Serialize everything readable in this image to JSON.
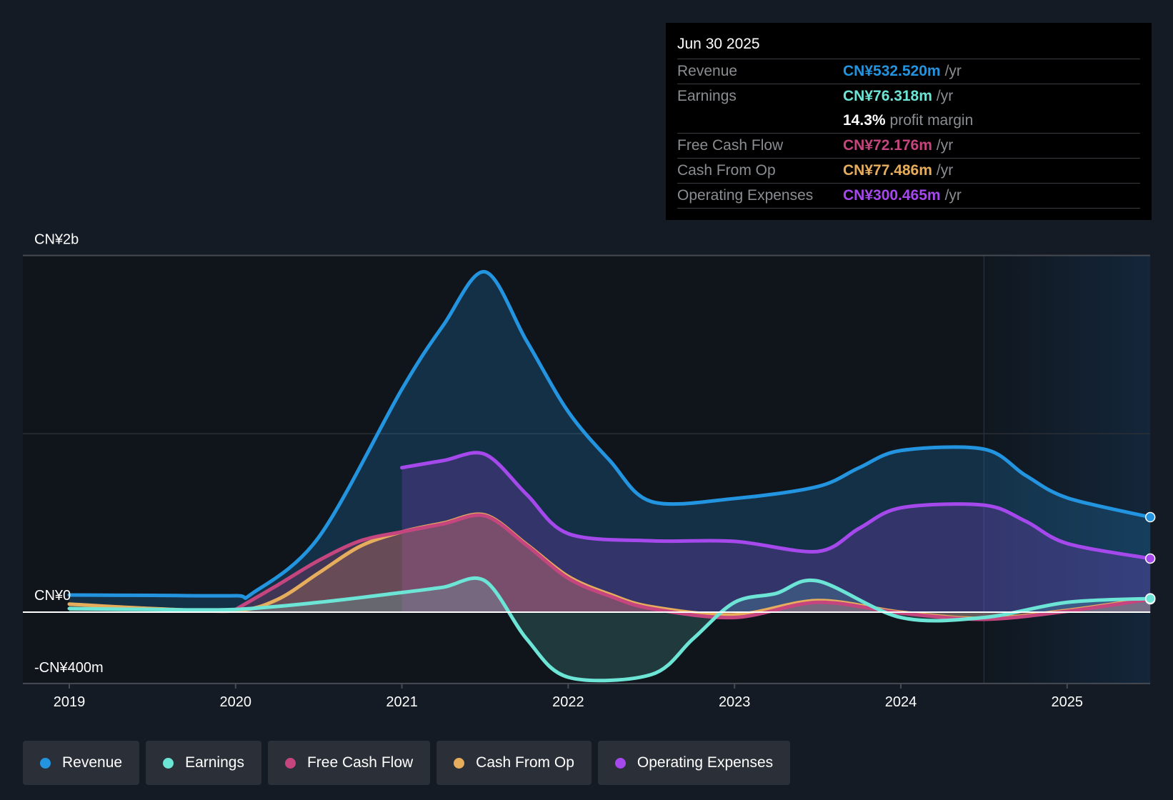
{
  "tooltip": {
    "date": "Jun 30 2025",
    "rows": [
      {
        "label": "Revenue",
        "value": "CN¥532.520m",
        "unit": "/yr",
        "color": "#2394df"
      },
      {
        "label": "Earnings",
        "value": "CN¥76.318m",
        "unit": "/yr",
        "color": "#6ce5d6"
      },
      {
        "label": "",
        "value": "14.3%",
        "unit": "profit margin",
        "color": "#ffffff"
      },
      {
        "label": "Free Cash Flow",
        "value": "CN¥72.176m",
        "unit": "/yr",
        "color": "#c5457f"
      },
      {
        "label": "Cash From Op",
        "value": "CN¥77.486m",
        "unit": "/yr",
        "color": "#e6ad5c"
      },
      {
        "label": "Operating Expenses",
        "value": "CN¥300.465m",
        "unit": "/yr",
        "color": "#a548ec"
      }
    ]
  },
  "legend": [
    {
      "label": "Revenue",
      "color": "#2394df"
    },
    {
      "label": "Earnings",
      "color": "#6ce5d6"
    },
    {
      "label": "Free Cash Flow",
      "color": "#c5457f"
    },
    {
      "label": "Cash From Op",
      "color": "#e6ad5c"
    },
    {
      "label": "Operating Expenses",
      "color": "#a548ec"
    }
  ],
  "chart_data": {
    "type": "area",
    "title": "",
    "xlabel": "",
    "ylabel": "",
    "currency": "CN¥",
    "ylim": [
      -400,
      2000
    ],
    "xlim": [
      2019,
      2025.5
    ],
    "y_ticks": [
      {
        "value": 2000,
        "label": "CN¥2b"
      },
      {
        "value": 0,
        "label": "CN¥0"
      },
      {
        "value": -400,
        "label": "-CN¥400m"
      }
    ],
    "x_ticks": [
      "2019",
      "2020",
      "2021",
      "2022",
      "2023",
      "2024",
      "2025"
    ],
    "x_tick_values": [
      2019,
      2020,
      2021,
      2022,
      2023,
      2024,
      2025
    ],
    "forecast_shade_start": 2024.5,
    "grid": true,
    "legend_position": "bottom",
    "series": [
      {
        "name": "Revenue",
        "color": "#2394df",
        "x": [
          2019,
          2019.5,
          2020,
          2020.1,
          2020.5,
          2021,
          2021.25,
          2021.5,
          2021.75,
          2022,
          2022.25,
          2022.5,
          2023,
          2023.5,
          2023.75,
          2024,
          2024.5,
          2024.75,
          2025,
          2025.5
        ],
        "y": [
          96,
          94,
          92,
          105,
          420,
          1250,
          1610,
          1908,
          1520,
          1124,
          850,
          620,
          637,
          704,
          810,
          906,
          914,
          767,
          641,
          532.52
        ]
      },
      {
        "name": "Operating Expenses",
        "color": "#a548ec",
        "x": [
          2021,
          2021.25,
          2021.5,
          2021.75,
          2022,
          2022.5,
          2023,
          2023.5,
          2023.75,
          2024,
          2024.5,
          2024.75,
          2025,
          2025.5
        ],
        "y": [
          810,
          850,
          885,
          660,
          440,
          400,
          397,
          340,
          470,
          585,
          600,
          510,
          385,
          300.465
        ]
      },
      {
        "name": "Cash From Op",
        "color": "#e6ad5c",
        "x": [
          2019,
          2019.5,
          2020,
          2020.25,
          2020.5,
          2020.75,
          2021,
          2021.25,
          2021.5,
          2021.75,
          2022,
          2022.25,
          2022.5,
          2023,
          2023.5,
          2024,
          2024.5,
          2025,
          2025.5
        ],
        "y": [
          45,
          20,
          8,
          70,
          220,
          370,
          450,
          500,
          545,
          380,
          200,
          100,
          30,
          -15,
          65,
          0,
          -35,
          10,
          77.486
        ]
      },
      {
        "name": "Free Cash Flow",
        "color": "#c5457f",
        "x": [
          2020,
          2020.25,
          2020.5,
          2020.75,
          2021,
          2021.25,
          2021.5,
          2021.75,
          2022,
          2022.25,
          2022.5,
          2023,
          2023.5,
          2024,
          2024.5,
          2025,
          2025.5
        ],
        "y": [
          15,
          150,
          290,
          400,
          450,
          495,
          540,
          375,
          190,
          90,
          20,
          -30,
          55,
          -5,
          -40,
          5,
          72.176
        ]
      },
      {
        "name": "Earnings",
        "color": "#6ce5d6",
        "x": [
          2019,
          2019.5,
          2020,
          2020.5,
          2021,
          2021.25,
          2021.5,
          2021.75,
          2022,
          2022.5,
          2022.75,
          2023,
          2023.25,
          2023.5,
          2024,
          2024.5,
          2025,
          2025.5
        ],
        "y": [
          20,
          15,
          15,
          55,
          110,
          140,
          175,
          -150,
          -365,
          -350,
          -150,
          55,
          105,
          175,
          -30,
          -30,
          55,
          76.318
        ]
      }
    ]
  }
}
